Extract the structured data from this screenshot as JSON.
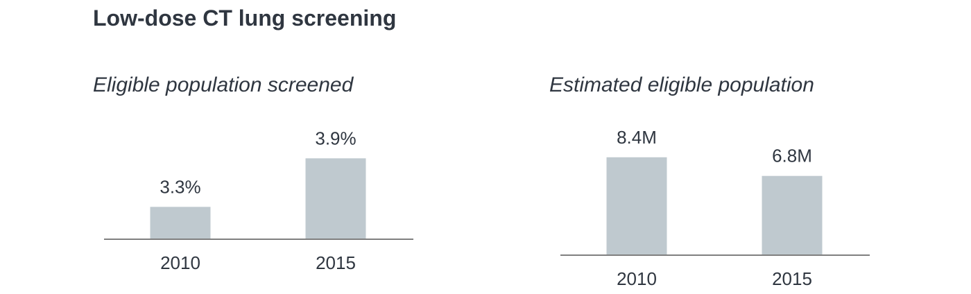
{
  "title": "Low-dose CT lung screening",
  "colors": {
    "bar": "#bfc9cf",
    "axis": "#7f7f7f",
    "text": "#2f3640"
  },
  "chart_data": [
    {
      "type": "bar",
      "title": "Eligible population screened",
      "categories": [
        "2010",
        "2015"
      ],
      "values": [
        3.3,
        3.9
      ],
      "labels": [
        "3.3%",
        "3.9%"
      ],
      "unit": "%",
      "ylim": [
        2.9,
        4.7
      ],
      "grid": false,
      "legend": "none"
    },
    {
      "type": "bar",
      "title": "Estimated eligible population",
      "categories": [
        "2010",
        "2015"
      ],
      "values": [
        8.4,
        6.8
      ],
      "labels": [
        "8.4M",
        "6.8M"
      ],
      "unit": "M",
      "ylim": [
        0,
        9.4
      ],
      "grid": false,
      "legend": "none"
    }
  ]
}
